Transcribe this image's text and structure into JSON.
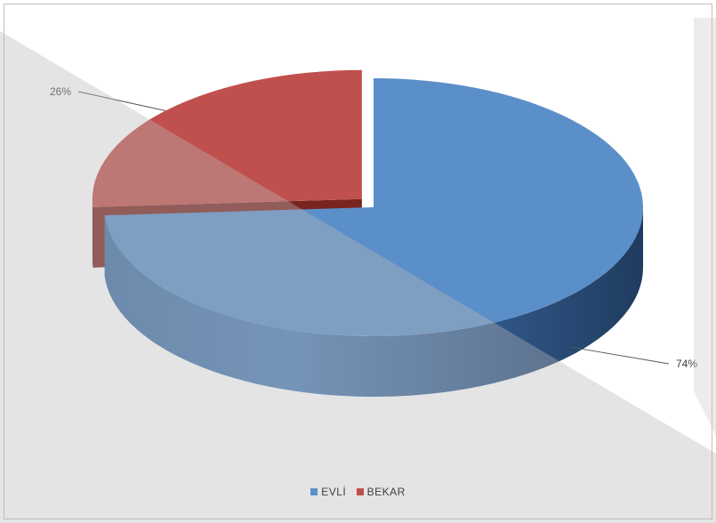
{
  "chart_data": {
    "type": "pie",
    "three_d": true,
    "categories": [
      "EVLİ",
      "BEKAR"
    ],
    "values": [
      74,
      26
    ],
    "labels": [
      "74%",
      "26%"
    ],
    "colors": [
      "#5b8fc9",
      "#c0504d"
    ],
    "exploded": "BEKAR",
    "legend_position": "bottom"
  }
}
